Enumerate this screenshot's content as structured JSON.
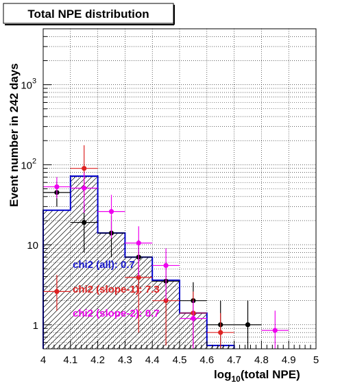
{
  "chart_data": {
    "type": "histogram",
    "title": "Total NPE distribution",
    "xlabel_prefix": "log",
    "xlabel_sub": "10",
    "xlabel_suffix": "(total NPE)",
    "ylabel": "Event number in 242 days",
    "x_range": [
      4.0,
      5.0
    ],
    "y_range": [
      0.5,
      5000
    ],
    "y_scale": "log",
    "grid": true,
    "x_ticks": [
      "4",
      "4.1",
      "4.2",
      "4.3",
      "4.4",
      "4.5",
      "4.6",
      "4.7",
      "4.8",
      "4.9",
      "5"
    ],
    "y_ticks": [
      {
        "value": 1,
        "label": "1"
      },
      {
        "value": 10,
        "label": "10"
      },
      {
        "value": 100,
        "label": "10",
        "exp": "2"
      },
      {
        "value": 1000,
        "label": "10",
        "exp": "3"
      }
    ],
    "histogram": {
      "bin_edges": [
        4.0,
        4.1,
        4.2,
        4.3,
        4.4,
        4.5,
        4.6,
        4.7,
        4.8,
        4.9,
        5.0
      ],
      "values": [
        27,
        72,
        14,
        7,
        3.6,
        1.4,
        0.55,
        0,
        0,
        0
      ],
      "color": "#0000cc",
      "hatch": true
    },
    "series": [
      {
        "color": "#000000",
        "points": [
          {
            "x": 4.05,
            "y": 45,
            "lo": 30,
            "hi": 62
          },
          {
            "x": 4.15,
            "y": 19,
            "lo": 8,
            "hi": 33
          },
          {
            "x": 4.25,
            "y": 14,
            "lo": 7,
            "hi": 23
          },
          {
            "x": 4.35,
            "y": 7,
            "lo": 3,
            "hi": 11.5
          },
          {
            "x": 4.45,
            "y": 3.5,
            "lo": 1.2,
            "hi": 6
          },
          {
            "x": 4.55,
            "y": 2,
            "lo": 0.55,
            "hi": 3.4
          },
          {
            "x": 4.65,
            "y": 1,
            "lo": 0.5,
            "hi": 2
          },
          {
            "x": 4.75,
            "y": 1,
            "lo": 0.5,
            "hi": 2
          }
        ]
      },
      {
        "color": "#dd2222",
        "points": [
          {
            "x": 4.05,
            "y": 2.6,
            "lo": 1.5,
            "hi": 4.2
          },
          {
            "x": 4.15,
            "y": 90,
            "lo": 40,
            "hi": 175
          },
          {
            "x": 4.35,
            "y": 3.9,
            "lo": 0.8,
            "hi": 8
          },
          {
            "x": 4.45,
            "y": 2,
            "lo": 0.55,
            "hi": 4
          },
          {
            "x": 4.55,
            "y": 1.4,
            "lo": 0.5,
            "hi": 2.6
          },
          {
            "x": 4.65,
            "y": 0.8,
            "lo": 0.5,
            "hi": 1.4
          }
        ]
      },
      {
        "color": "#ee00ee",
        "points": [
          {
            "x": 4.05,
            "y": 53,
            "lo": 38,
            "hi": 70
          },
          {
            "x": 4.15,
            "y": 51,
            "lo": 25,
            "hi": 80
          },
          {
            "x": 4.25,
            "y": 26,
            "lo": 12,
            "hi": 42
          },
          {
            "x": 4.35,
            "y": 10.5,
            "lo": 4,
            "hi": 17
          },
          {
            "x": 4.45,
            "y": 5.5,
            "lo": 2,
            "hi": 9
          },
          {
            "x": 4.55,
            "y": 1.2,
            "lo": 0.5,
            "hi": 2
          },
          {
            "x": 4.85,
            "y": 0.85,
            "lo": 0.5,
            "hi": 1.5
          }
        ]
      }
    ],
    "annotations": [
      {
        "text": "chi2 (all): 0.7",
        "color": "#1a1ad0"
      },
      {
        "text": "chi2 (slope-1): 7.3",
        "color": "#dd2222"
      },
      {
        "text": "chi2 (slope-2): 0.7",
        "color": "#ee00ee"
      }
    ]
  }
}
